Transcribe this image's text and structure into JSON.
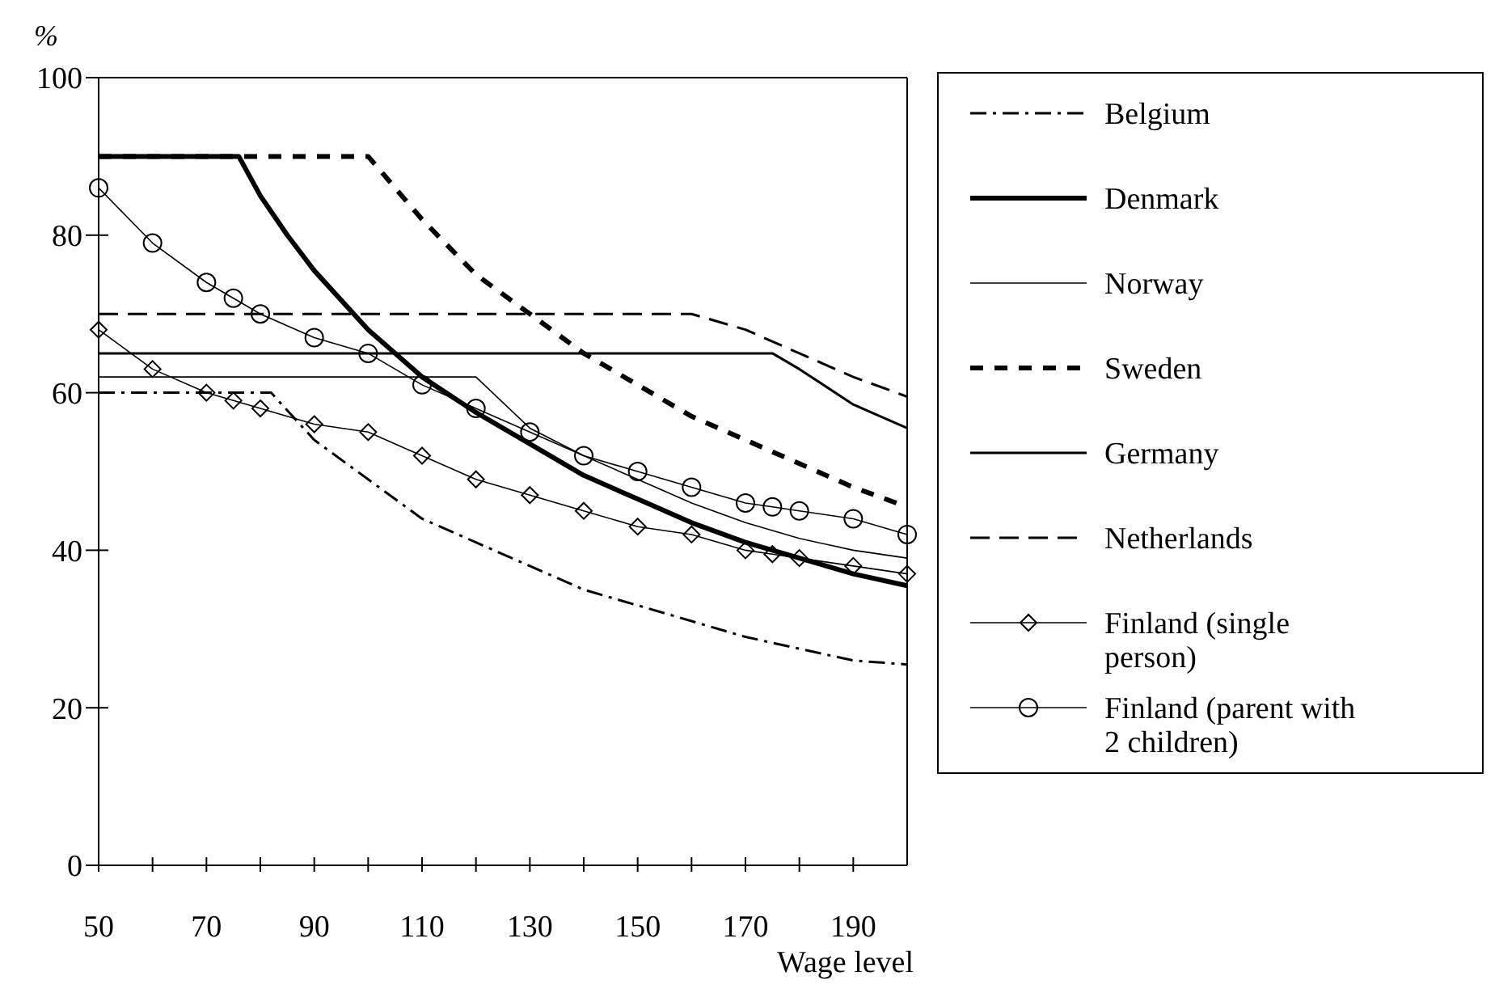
{
  "chart_data": {
    "type": "line",
    "ylabel": "%",
    "xlabel": "Wage level",
    "xlim": [
      50,
      200
    ],
    "xticks": [
      50,
      {
        "value": 60,
        "label": null
      },
      70,
      {
        "value": 80,
        "label": null
      },
      90,
      {
        "value": 100,
        "label": null
      },
      110,
      {
        "value": 120,
        "label": null
      },
      130,
      {
        "value": 140,
        "label": null
      },
      150,
      {
        "value": 160,
        "label": null
      },
      170,
      {
        "value": 180,
        "label": null
      },
      190
    ],
    "ylim": [
      0,
      100
    ],
    "yticks": [
      0,
      20,
      40,
      60,
      80,
      100
    ],
    "grid": false,
    "legend": "right",
    "marker": "none",
    "series": [
      {
        "name": "Belgium",
        "color": "#000000",
        "line_style": "dashdot",
        "x": [
          50,
          82,
          90,
          100,
          110,
          120,
          130,
          140,
          150,
          160,
          170,
          180,
          190,
          200
        ],
        "values": [
          60,
          60,
          54,
          49,
          44,
          41,
          38,
          35,
          33,
          31,
          29,
          27.5,
          26,
          25.5
        ]
      },
      {
        "name": "Denmark",
        "color": "#000000",
        "line_style": "solid",
        "x": [
          50,
          76,
          80,
          85,
          90,
          100,
          110,
          120,
          130,
          140,
          150,
          160,
          170,
          180,
          190,
          200
        ],
        "values": [
          90,
          90,
          85,
          80,
          75.5,
          68,
          62,
          57.5,
          53.5,
          49.5,
          46.5,
          43.5,
          41,
          39,
          37,
          35.5
        ]
      },
      {
        "name": "Norway",
        "color": "#000000",
        "line_style": "solid",
        "x": [
          50,
          120,
          130,
          140,
          150,
          160,
          170,
          180,
          190,
          200
        ],
        "values": [
          62,
          62,
          55.5,
          52,
          49,
          46,
          43.5,
          41.5,
          40,
          39
        ]
      },
      {
        "name": "Sweden",
        "color": "#000000",
        "line_style": "dashed",
        "x": [
          50,
          100,
          110,
          120,
          130,
          140,
          150,
          160,
          170,
          180,
          190,
          200
        ],
        "values": [
          90,
          90,
          82,
          75,
          70,
          65,
          61,
          57,
          54,
          51,
          48,
          45.5
        ]
      },
      {
        "name": "Germany",
        "color": "#000000",
        "line_style": "solid",
        "x": [
          50,
          175,
          180,
          190,
          200
        ],
        "values": [
          65,
          65,
          63,
          58.5,
          55.5
        ]
      },
      {
        "name": "Netherlands",
        "color": "#000000",
        "line_style": "dashed",
        "x": [
          50,
          160,
          170,
          180,
          190,
          200
        ],
        "values": [
          70,
          70,
          68,
          65,
          62,
          59.5
        ]
      },
      {
        "name": "Finland (single person)",
        "color": "#000000",
        "line_style": "solid",
        "marker": "diamond",
        "x": [
          50,
          60,
          70,
          75,
          80,
          90,
          100,
          110,
          120,
          130,
          140,
          150,
          160,
          170,
          175,
          180,
          190,
          200
        ],
        "values": [
          68,
          63,
          60,
          59,
          58,
          56,
          55,
          52,
          49,
          47,
          45,
          43,
          42,
          40,
          39.5,
          39,
          38,
          37
        ]
      },
      {
        "name": "Finland (parent with 2 children)",
        "color": "#000000",
        "line_style": "solid",
        "marker": "circle",
        "x": [
          50,
          60,
          70,
          75,
          80,
          90,
          100,
          110,
          120,
          130,
          140,
          150,
          160,
          170,
          175,
          180,
          190,
          200
        ],
        "values": [
          86,
          79,
          74,
          72,
          70,
          67,
          65,
          61,
          58,
          55,
          52,
          50,
          48,
          46,
          45.5,
          45,
          44,
          42
        ]
      }
    ]
  }
}
